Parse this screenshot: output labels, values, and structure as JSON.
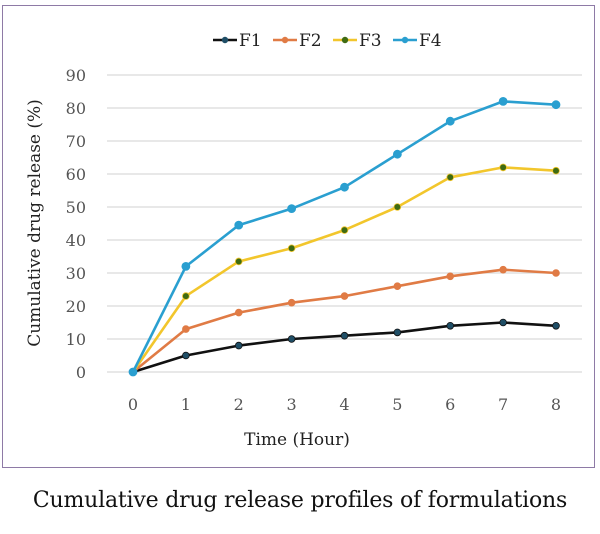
{
  "caption": "Cumulative drug release profiles of formulations",
  "chart_data": {
    "type": "line",
    "title": "",
    "xlabel": "Time (Hour)",
    "ylabel": "Cumulative drug release (%)",
    "x": [
      0,
      1,
      2,
      3,
      4,
      5,
      6,
      7,
      8
    ],
    "x_tick_labels": [
      "0",
      "1",
      "2",
      "3",
      "4",
      "5",
      "6",
      "7",
      "8"
    ],
    "y_tick_labels": [
      "0",
      "10",
      "20",
      "30",
      "40",
      "50",
      "60",
      "70",
      "80",
      "90"
    ],
    "ylim": [
      0,
      90
    ],
    "xlim": [
      0,
      8
    ],
    "grid": "horizontal",
    "legend_position": "top-center",
    "series": [
      {
        "name": "F1",
        "color": "#111111",
        "marker_color": "#1f4e66",
        "values": [
          0,
          5,
          8,
          10,
          11,
          12,
          14,
          15,
          14
        ]
      },
      {
        "name": "F2",
        "color": "#e07b45",
        "marker_color": "#e07b45",
        "values": [
          0,
          13,
          18,
          21,
          23,
          26,
          29,
          31,
          30
        ]
      },
      {
        "name": "F3",
        "color": "#f2c62c",
        "marker_color": "#3f6b12",
        "values": [
          0,
          23,
          33.5,
          37.5,
          43,
          50,
          59,
          62,
          61
        ]
      },
      {
        "name": "F4",
        "color": "#2a9fd0",
        "marker_color": "#2a9fd0",
        "values": [
          0,
          32,
          44.5,
          49.5,
          56,
          66,
          76,
          82,
          81
        ]
      }
    ]
  }
}
